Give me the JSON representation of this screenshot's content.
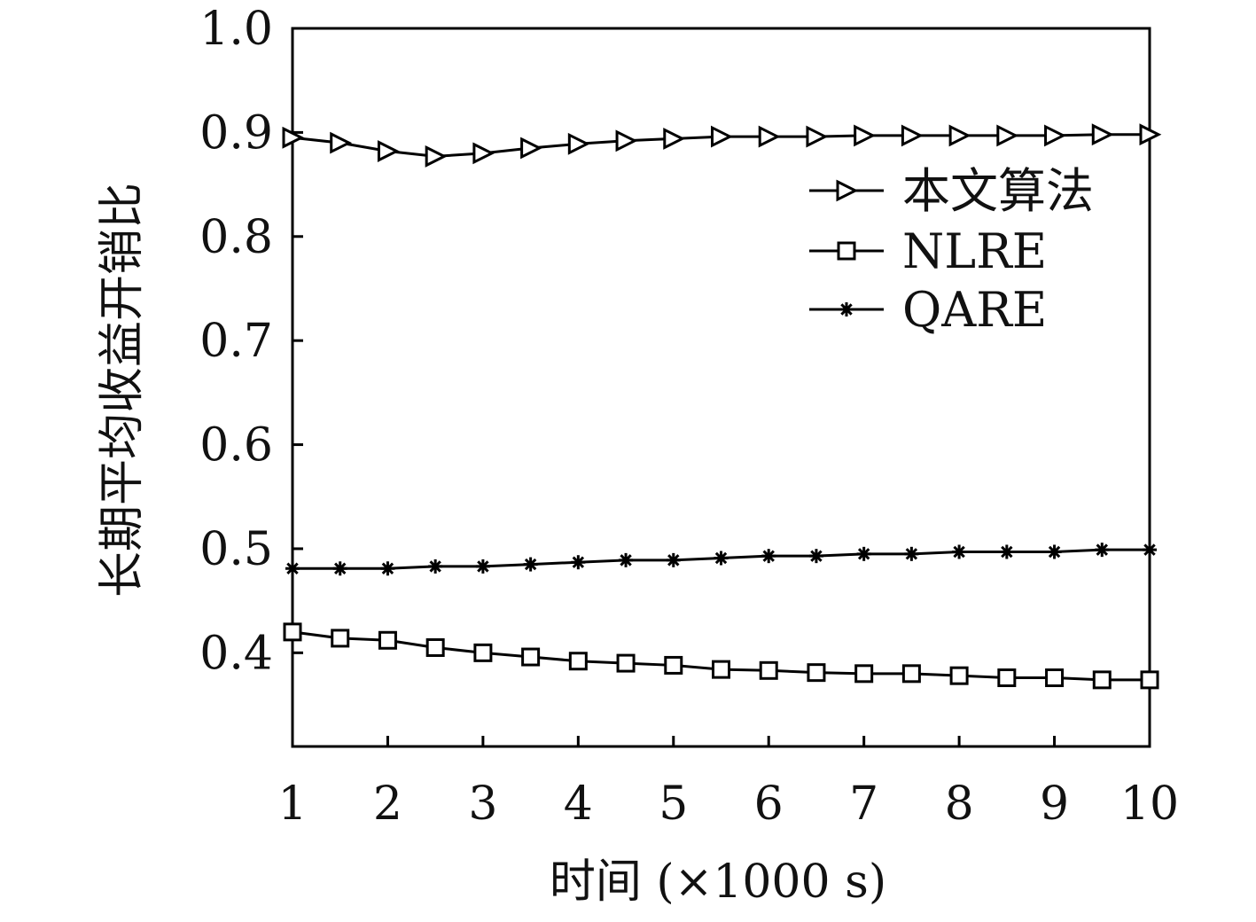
{
  "chart_data": {
    "type": "line",
    "xlabel": "时间 (×1000 s)",
    "ylabel": "长期平均收益开销比",
    "xlim": [
      1,
      10
    ],
    "ylim": [
      0.31,
      1.0
    ],
    "xticks": [
      "1",
      "2",
      "3",
      "4",
      "5",
      "6",
      "7",
      "8",
      "9",
      "10"
    ],
    "yticks": [
      "0.4",
      "0.5",
      "0.6",
      "0.7",
      "0.8",
      "0.9",
      "1.0"
    ],
    "grid": false,
    "legend_position": "top-right",
    "x": [
      1,
      1.5,
      2,
      2.5,
      3,
      3.5,
      4,
      4.5,
      5,
      5.5,
      6,
      6.5,
      7,
      7.5,
      8,
      8.5,
      9,
      9.5,
      10
    ],
    "series": [
      {
        "name": "本文算法",
        "marker": "triangle-right",
        "values": [
          0.895,
          0.89,
          0.882,
          0.877,
          0.88,
          0.885,
          0.889,
          0.892,
          0.894,
          0.896,
          0.896,
          0.896,
          0.897,
          0.897,
          0.897,
          0.897,
          0.897,
          0.898,
          0.898
        ]
      },
      {
        "name": "NLRE",
        "marker": "square",
        "values": [
          0.42,
          0.414,
          0.412,
          0.405,
          0.4,
          0.396,
          0.392,
          0.39,
          0.388,
          0.384,
          0.383,
          0.381,
          0.38,
          0.38,
          0.378,
          0.376,
          0.376,
          0.374,
          0.374
        ]
      },
      {
        "name": "QARE",
        "marker": "star",
        "values": [
          0.481,
          0.481,
          0.481,
          0.483,
          0.483,
          0.485,
          0.487,
          0.489,
          0.489,
          0.491,
          0.493,
          0.493,
          0.495,
          0.495,
          0.497,
          0.497,
          0.497,
          0.499,
          0.499
        ]
      }
    ]
  }
}
